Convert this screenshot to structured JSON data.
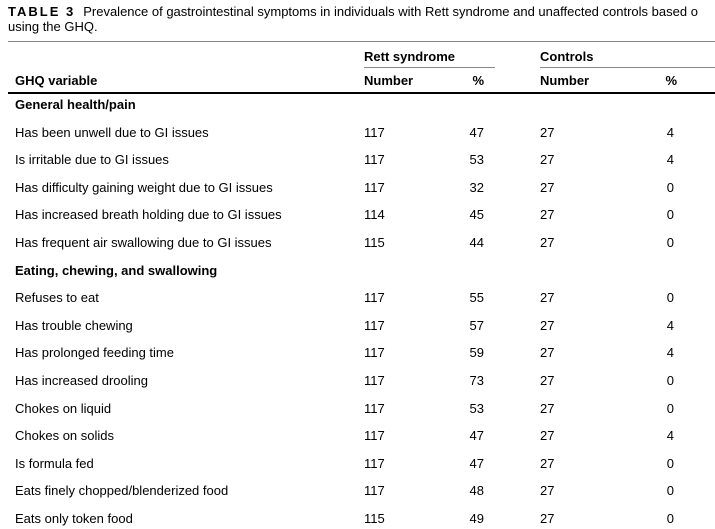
{
  "caption": {
    "label": "TABLE 3",
    "text": "Prevalence of gastrointestinal symptoms in individuals with Rett syndrome and unaffected controls based o",
    "text_line2": "using the GHQ."
  },
  "header": {
    "group_rett": "Rett syndrome",
    "group_controls": "Controls",
    "col_variable": "GHQ variable",
    "col_rett_number": "Number",
    "col_rett_pct": "%",
    "col_ctrl_number": "Number",
    "col_ctrl_pct": "%"
  },
  "sections": [
    {
      "title": "General health/pain",
      "rows": [
        {
          "label": "Has been unwell due to GI issues",
          "rett_n": "117",
          "rett_pct": "47",
          "ctrl_n": "27",
          "ctrl_pct": "4"
        },
        {
          "label": "Is irritable due to GI issues",
          "rett_n": "117",
          "rett_pct": "53",
          "ctrl_n": "27",
          "ctrl_pct": "4"
        },
        {
          "label": "Has difficulty gaining weight due to GI issues",
          "rett_n": "117",
          "rett_pct": "32",
          "ctrl_n": "27",
          "ctrl_pct": "0"
        },
        {
          "label": "Has increased breath holding due to GI issues",
          "rett_n": "114",
          "rett_pct": "45",
          "ctrl_n": "27",
          "ctrl_pct": "0"
        },
        {
          "label": "Has frequent air swallowing due to GI issues",
          "rett_n": "115",
          "rett_pct": "44",
          "ctrl_n": "27",
          "ctrl_pct": "0"
        }
      ]
    },
    {
      "title": "Eating, chewing, and swallowing",
      "rows": [
        {
          "label": "Refuses to eat",
          "rett_n": "117",
          "rett_pct": "55",
          "ctrl_n": "27",
          "ctrl_pct": "0"
        },
        {
          "label": "Has trouble chewing",
          "rett_n": "117",
          "rett_pct": "57",
          "ctrl_n": "27",
          "ctrl_pct": "4"
        },
        {
          "label": "Has prolonged feeding time",
          "rett_n": "117",
          "rett_pct": "59",
          "ctrl_n": "27",
          "ctrl_pct": "4"
        },
        {
          "label": "Has increased drooling",
          "rett_n": "117",
          "rett_pct": "73",
          "ctrl_n": "27",
          "ctrl_pct": "0"
        },
        {
          "label": "Chokes on liquid",
          "rett_n": "117",
          "rett_pct": "53",
          "ctrl_n": "27",
          "ctrl_pct": "0"
        },
        {
          "label": "Chokes on solids",
          "rett_n": "117",
          "rett_pct": "47",
          "ctrl_n": "27",
          "ctrl_pct": "4"
        },
        {
          "label": "Is formula fed",
          "rett_n": "117",
          "rett_pct": "47",
          "ctrl_n": "27",
          "ctrl_pct": "0"
        },
        {
          "label": "Eats finely chopped/blenderized food",
          "rett_n": "117",
          "rett_pct": "48",
          "ctrl_n": "27",
          "ctrl_pct": "0"
        },
        {
          "label": "Eats only token food",
          "rett_n": "115",
          "rett_pct": "49",
          "ctrl_n": "27",
          "ctrl_pct": "0"
        }
      ]
    }
  ]
}
